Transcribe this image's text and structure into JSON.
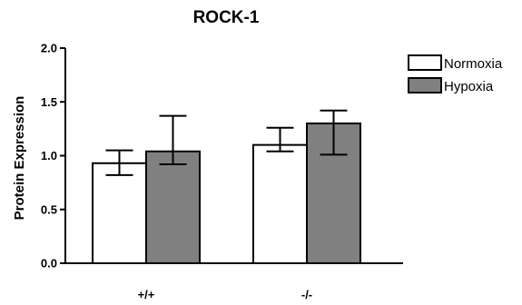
{
  "chart_data": {
    "type": "bar",
    "title": "ROCK-1",
    "ylabel": "Protein Expression",
    "xlabel": "",
    "categories": [
      "+/+",
      "-/-"
    ],
    "ylim": [
      0,
      2.0
    ],
    "yticks": [
      0.0,
      0.5,
      1.0,
      1.5,
      2.0
    ],
    "ytick_labels": [
      "0.0",
      "0.5",
      "1.0",
      "1.5",
      "2.0"
    ],
    "grid": false,
    "legend_position": "top-right",
    "series": [
      {
        "name": "Normoxia",
        "color": "#ffffff",
        "values": [
          0.93,
          1.1
        ],
        "error_low": [
          0.82,
          1.04
        ],
        "error_high": [
          1.05,
          1.26
        ]
      },
      {
        "name": "Hypoxia",
        "color": "#808080",
        "values": [
          1.04,
          1.3
        ],
        "error_low": [
          0.92,
          1.01
        ],
        "error_high": [
          1.37,
          1.42
        ]
      }
    ]
  }
}
